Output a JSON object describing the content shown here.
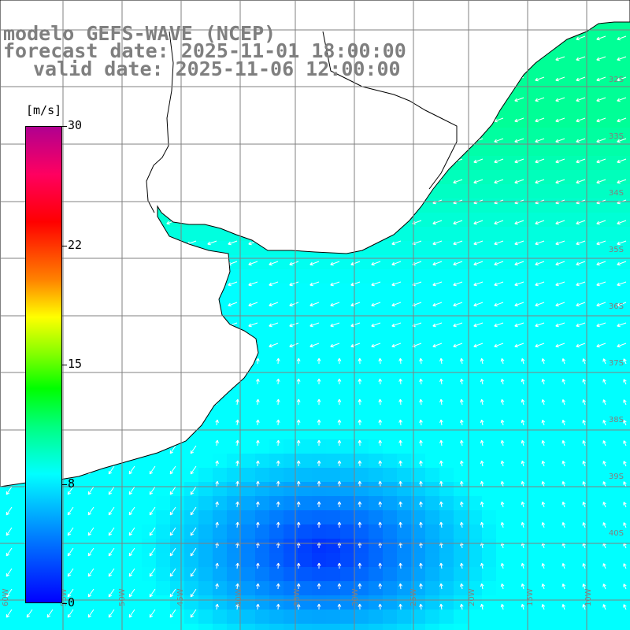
{
  "title": {
    "line1": "modelo GEFS-WAVE (NCEP)",
    "line2": "forecast date: 2025-11-01 18:00:00",
    "line3": "valid date: 2025-11-06 12:00:00"
  },
  "colorbar": {
    "unit": "[m/s]",
    "ticks": [
      {
        "label": "30",
        "value": 30
      },
      {
        "label": "22",
        "value": 22.5
      },
      {
        "label": "15",
        "value": 15
      },
      {
        "label": "8",
        "value": 7.5
      },
      {
        "label": "0",
        "value": 0
      }
    ],
    "min": 0,
    "max": 30
  },
  "graticule": {
    "lon_labels": [
      "60W",
      "55W",
      "50W",
      "45W",
      "40W",
      "35W",
      "30W",
      "25W",
      "20W",
      "15W",
      "10W"
    ],
    "lat_labels": [
      "32S",
      "33S",
      "34S",
      "35S",
      "36S",
      "37S",
      "38S",
      "39S",
      "40S"
    ]
  },
  "colors": {
    "land": "#ffffff",
    "grid": "#808080",
    "arrows": "#ffffff",
    "title": "#7f7f7f"
  }
}
